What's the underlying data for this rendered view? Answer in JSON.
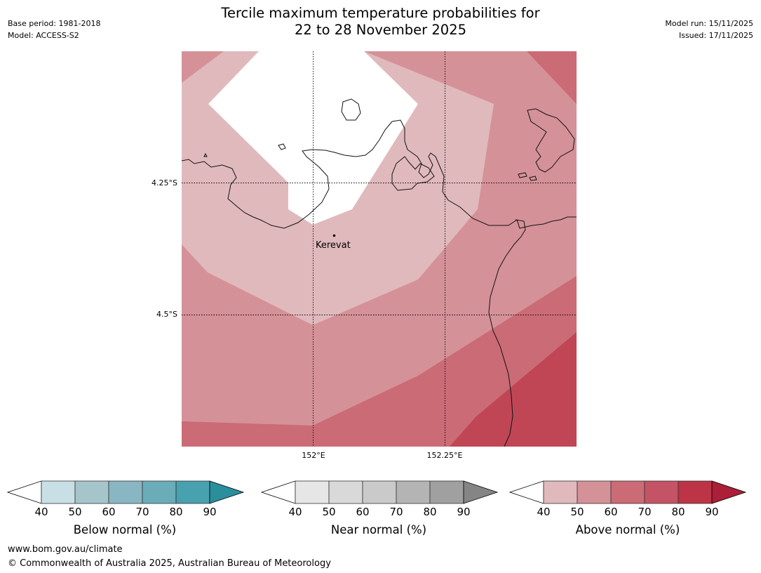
{
  "header": {
    "title_line1": "Tercile maximum temperature probabilities for",
    "title_line2": "22 to 28 November 2025",
    "base_period": "Base period: 1981-2018",
    "model": "Model: ACCESS-S2",
    "model_run": "Model run: 15/11/2025",
    "issued": "Issued: 17/11/2025"
  },
  "map": {
    "lat_labels": [
      "4.25°S",
      "4.5°S"
    ],
    "lon_labels": [
      "152°E",
      "152.25°E"
    ],
    "place": "Kerevat",
    "shading_colors": {
      "white": "#ffffff",
      "above_40_50": "#e0b9bd",
      "above_50_60": "#d59198",
      "above_60_70": "#cb6b76",
      "above_70_80": "#c04656"
    }
  },
  "colorbars": [
    {
      "label": "Below normal (%)",
      "ticks": [
        "40",
        "50",
        "60",
        "70",
        "80",
        "90"
      ],
      "colors": [
        "#c8e0e5",
        "#a6c5cb",
        "#88b6c2",
        "#6aacb8",
        "#48a1ae",
        "#2a8e9c"
      ]
    },
    {
      "label": "Near normal (%)",
      "ticks": [
        "40",
        "50",
        "60",
        "70",
        "80",
        "90"
      ],
      "colors": [
        "#e6e6e6",
        "#d9d9d9",
        "#cacaca",
        "#b4b4b4",
        "#a0a0a0",
        "#858585"
      ]
    },
    {
      "label": "Above normal (%)",
      "ticks": [
        "40",
        "50",
        "60",
        "70",
        "80",
        "90"
      ],
      "colors": [
        "#e0b9bd",
        "#d59198",
        "#cb6b76",
        "#c45465",
        "#bd3447",
        "#ab1f38"
      ]
    }
  ],
  "footer": {
    "url": "www.bom.gov.au/climate",
    "copyright": "© Commonwealth of Australia 2025, Australian Bureau of Meteorology"
  }
}
